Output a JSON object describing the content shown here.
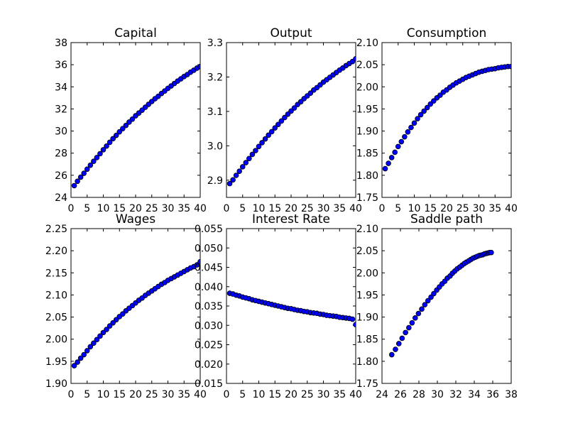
{
  "chart_data": [
    {
      "type": "scatter",
      "title": "Capital",
      "xlim": [
        0,
        40
      ],
      "ylim": [
        24,
        38
      ],
      "xticks": [
        "0",
        "5",
        "10",
        "15",
        "20",
        "25",
        "30",
        "35",
        "40"
      ],
      "yticks": [
        "24",
        "26",
        "28",
        "30",
        "32",
        "34",
        "36",
        "38"
      ],
      "grid": false,
      "marker_color": "#0000ff",
      "x": [
        1,
        2,
        3,
        4,
        5,
        6,
        7,
        8,
        9,
        10,
        11,
        12,
        13,
        14,
        15,
        16,
        17,
        18,
        19,
        20,
        21,
        22,
        23,
        24,
        25,
        26,
        27,
        28,
        29,
        30,
        31,
        32,
        33,
        34,
        35,
        36,
        37,
        38,
        39,
        40
      ],
      "y": [
        25.06,
        25.46,
        25.83,
        26.18,
        26.55,
        26.91,
        27.26,
        27.6,
        27.95,
        28.31,
        28.64,
        28.98,
        29.31,
        29.61,
        29.93,
        30.22,
        30.51,
        30.81,
        31.08,
        31.38,
        31.63,
        31.89,
        32.15,
        32.42,
        32.67,
        32.92,
        33.14,
        33.4,
        33.62,
        33.86,
        34.08,
        34.3,
        34.52,
        34.72,
        34.93,
        35.11,
        35.32,
        35.5,
        35.69,
        35.84
      ]
    },
    {
      "type": "scatter",
      "title": "Output",
      "xlim": [
        0,
        40
      ],
      "ylim": [
        2.85,
        3.3
      ],
      "xticks": [
        "0",
        "5",
        "10",
        "15",
        "20",
        "25",
        "30",
        "35",
        "40"
      ],
      "yticks": [
        "2.9",
        "3.0",
        "3.1",
        "3.2",
        "3.3"
      ],
      "grid": false,
      "marker_color": "#0000ff",
      "x": [
        1,
        2,
        3,
        4,
        5,
        6,
        7,
        8,
        9,
        10,
        11,
        12,
        13,
        14,
        15,
        16,
        17,
        18,
        19,
        20,
        21,
        22,
        23,
        24,
        25,
        26,
        27,
        28,
        29,
        30,
        31,
        32,
        33,
        34,
        35,
        36,
        37,
        38,
        39,
        40
      ],
      "y": [
        2.89,
        2.901,
        2.914,
        2.926,
        2.939,
        2.951,
        2.963,
        2.975,
        2.986,
        2.998,
        3.009,
        3.02,
        3.031,
        3.041,
        3.052,
        3.062,
        3.072,
        3.082,
        3.092,
        3.101,
        3.11,
        3.12,
        3.128,
        3.137,
        3.145,
        3.153,
        3.162,
        3.169,
        3.177,
        3.185,
        3.192,
        3.199,
        3.206,
        3.213,
        3.22,
        3.226,
        3.233,
        3.239,
        3.245,
        3.253
      ]
    },
    {
      "type": "scatter",
      "title": "Consumption",
      "xlim": [
        0,
        40
      ],
      "ylim": [
        1.75,
        2.1
      ],
      "xticks": [
        "0",
        "5",
        "10",
        "15",
        "20",
        "25",
        "30",
        "35",
        "40"
      ],
      "yticks": [
        "1.75",
        "1.80",
        "1.85",
        "1.90",
        "1.95",
        "2.00",
        "2.05",
        "2.10"
      ],
      "grid": false,
      "marker_color": "#0000ff",
      "x": [
        1,
        2,
        3,
        4,
        5,
        6,
        7,
        8,
        9,
        10,
        11,
        12,
        13,
        14,
        15,
        16,
        17,
        18,
        19,
        20,
        21,
        22,
        23,
        24,
        25,
        26,
        27,
        28,
        29,
        30,
        31,
        32,
        33,
        34,
        35,
        36,
        37,
        38,
        39,
        40
      ],
      "y": [
        1.815,
        1.827,
        1.84,
        1.852,
        1.865,
        1.876,
        1.887,
        1.898,
        1.908,
        1.918,
        1.928,
        1.937,
        1.945,
        1.953,
        1.961,
        1.968,
        1.975,
        1.981,
        1.988,
        1.993,
        1.999,
        2.004,
        2.009,
        2.013,
        2.017,
        2.021,
        2.024,
        2.027,
        2.03,
        2.033,
        2.035,
        2.037,
        2.039,
        2.04,
        2.041,
        2.043,
        2.044,
        2.045,
        2.046,
        2.046
      ]
    },
    {
      "type": "scatter",
      "title": "Wages",
      "xlim": [
        0,
        40
      ],
      "ylim": [
        1.9,
        2.25
      ],
      "xticks": [
        "0",
        "5",
        "10",
        "15",
        "20",
        "25",
        "30",
        "35",
        "40"
      ],
      "yticks": [
        "1.90",
        "1.95",
        "2.00",
        "2.05",
        "2.10",
        "2.15",
        "2.20",
        "2.25"
      ],
      "grid": false,
      "marker_color": "#0000ff",
      "x": [
        1,
        2,
        3,
        4,
        5,
        6,
        7,
        8,
        9,
        10,
        11,
        12,
        13,
        14,
        15,
        16,
        17,
        18,
        19,
        20,
        21,
        22,
        23,
        24,
        25,
        26,
        27,
        28,
        29,
        30,
        31,
        32,
        33,
        34,
        35,
        36,
        37,
        38,
        39,
        40
      ],
      "y": [
        1.94,
        1.948,
        1.957,
        1.965,
        1.974,
        1.983,
        1.991,
        1.999,
        2.007,
        2.015,
        2.022,
        2.03,
        2.037,
        2.044,
        2.051,
        2.057,
        2.064,
        2.07,
        2.076,
        2.082,
        2.088,
        2.093,
        2.099,
        2.104,
        2.109,
        2.114,
        2.119,
        2.124,
        2.128,
        2.133,
        2.137,
        2.141,
        2.145,
        2.149,
        2.153,
        2.157,
        2.161,
        2.164,
        2.168,
        2.175
      ]
    },
    {
      "type": "scatter",
      "title": "Interest Rate",
      "xlim": [
        0,
        40
      ],
      "ylim": [
        0.015,
        0.055
      ],
      "xticks": [
        "0",
        "5",
        "10",
        "15",
        "20",
        "25",
        "30",
        "35",
        "40"
      ],
      "yticks": [
        "0.015",
        "0.020",
        "0.025",
        "0.030",
        "0.035",
        "0.040",
        "0.045",
        "0.050",
        "0.055"
      ],
      "grid": false,
      "marker_color": "#0000ff",
      "x": [
        1,
        2,
        3,
        4,
        5,
        6,
        7,
        8,
        9,
        10,
        11,
        12,
        13,
        14,
        15,
        16,
        17,
        18,
        19,
        20,
        21,
        22,
        23,
        24,
        25,
        26,
        27,
        28,
        29,
        30,
        31,
        32,
        33,
        34,
        35,
        36,
        37,
        38,
        39,
        40
      ],
      "y": [
        0.0383,
        0.0381,
        0.0378,
        0.0376,
        0.0373,
        0.0371,
        0.0369,
        0.0366,
        0.0364,
        0.0362,
        0.036,
        0.0358,
        0.0356,
        0.0354,
        0.0352,
        0.035,
        0.0348,
        0.0346,
        0.0344,
        0.0343,
        0.0341,
        0.0339,
        0.0338,
        0.0336,
        0.0335,
        0.0333,
        0.0332,
        0.0331,
        0.0329,
        0.0328,
        0.0326,
        0.0325,
        0.0324,
        0.0323,
        0.0321,
        0.032,
        0.0319,
        0.0318,
        0.0316,
        0.0302
      ]
    },
    {
      "type": "scatter",
      "title": "Saddle path",
      "xlim": [
        24,
        38
      ],
      "ylim": [
        1.75,
        2.1
      ],
      "xticks": [
        "24",
        "26",
        "28",
        "30",
        "32",
        "34",
        "36",
        "38"
      ],
      "yticks": [
        "1.75",
        "1.80",
        "1.85",
        "1.90",
        "1.95",
        "2.00",
        "2.05",
        "2.10"
      ],
      "grid": false,
      "marker_color": "#0000ff",
      "x": [
        25.06,
        25.46,
        25.83,
        26.18,
        26.55,
        26.91,
        27.26,
        27.6,
        27.95,
        28.31,
        28.64,
        28.98,
        29.31,
        29.61,
        29.93,
        30.22,
        30.51,
        30.81,
        31.08,
        31.38,
        31.63,
        31.89,
        32.15,
        32.42,
        32.67,
        32.92,
        33.14,
        33.4,
        33.62,
        33.86,
        34.08,
        34.3,
        34.52,
        34.72,
        34.93,
        35.11,
        35.32,
        35.5,
        35.69,
        35.84
      ],
      "y": [
        1.815,
        1.827,
        1.84,
        1.852,
        1.865,
        1.876,
        1.887,
        1.898,
        1.908,
        1.918,
        1.928,
        1.937,
        1.945,
        1.953,
        1.961,
        1.968,
        1.975,
        1.981,
        1.988,
        1.993,
        1.999,
        2.004,
        2.009,
        2.013,
        2.017,
        2.021,
        2.024,
        2.027,
        2.03,
        2.033,
        2.035,
        2.037,
        2.039,
        2.04,
        2.041,
        2.043,
        2.044,
        2.045,
        2.046,
        2.046
      ]
    }
  ]
}
